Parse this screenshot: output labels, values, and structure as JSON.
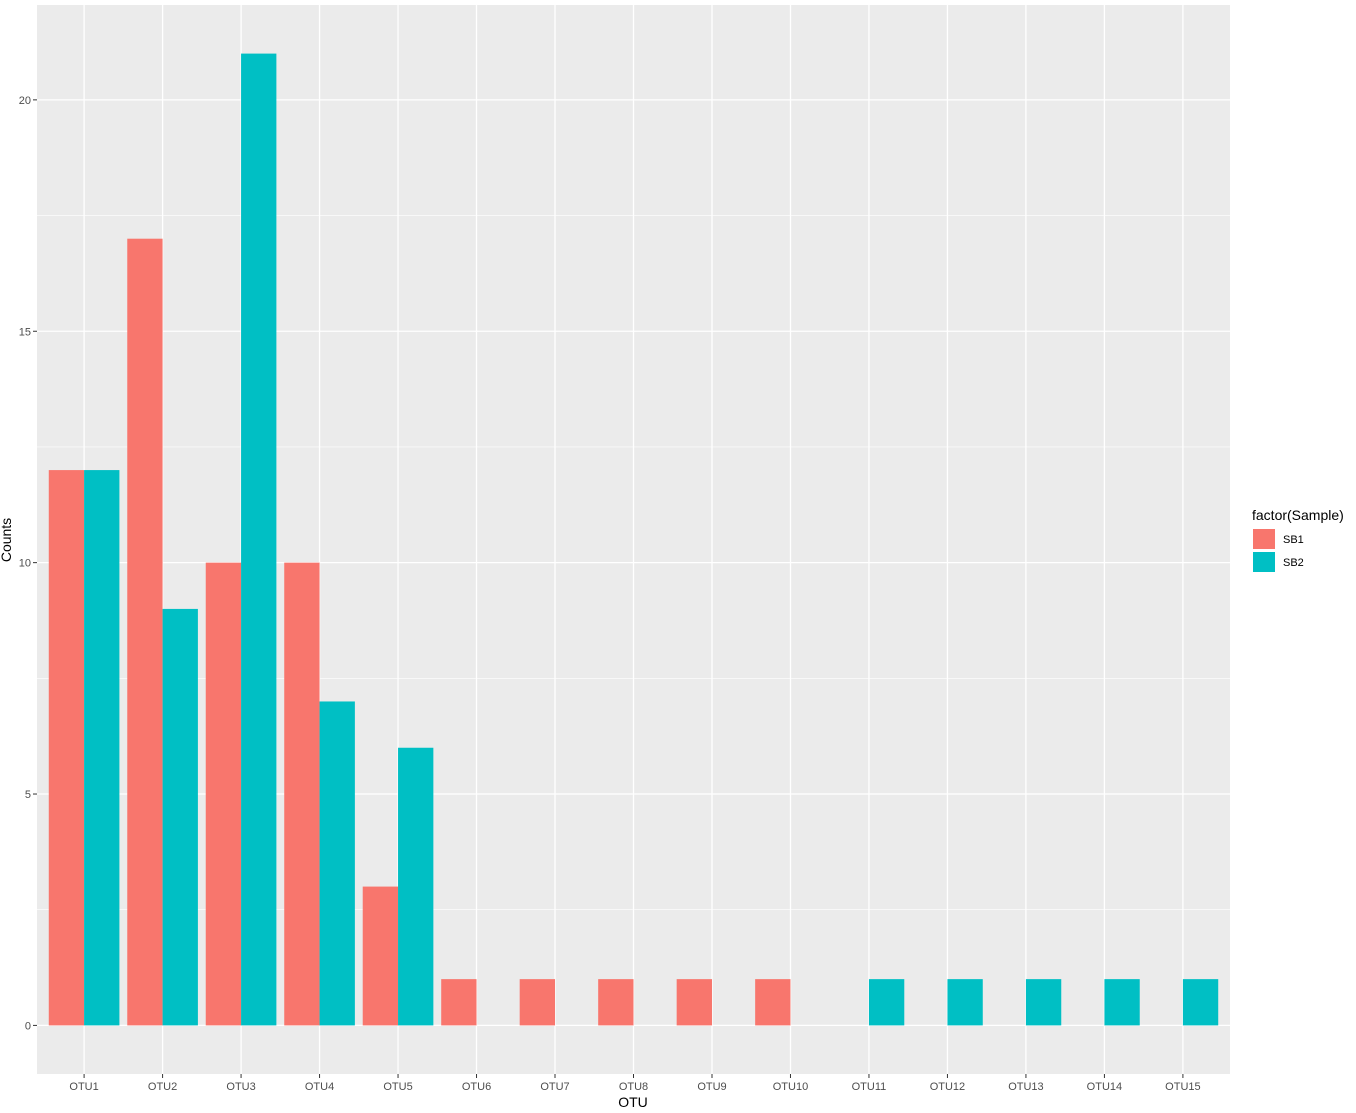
{
  "chart_data": {
    "type": "bar",
    "xlabel": "OTU",
    "ylabel": "Counts",
    "categories": [
      "OTU1",
      "OTU2",
      "OTU3",
      "OTU4",
      "OTU5",
      "OTU6",
      "OTU7",
      "OTU8",
      "OTU9",
      "OTU10",
      "OTU11",
      "OTU12",
      "OTU13",
      "OTU14",
      "OTU15"
    ],
    "series": [
      {
        "name": "SB1",
        "color": "#F8766D",
        "values": [
          12,
          17,
          10,
          10,
          3,
          1,
          1,
          1,
          1,
          1,
          null,
          null,
          null,
          null,
          null
        ]
      },
      {
        "name": "SB2",
        "color": "#00BFC4",
        "values": [
          12,
          9,
          21,
          7,
          6,
          null,
          null,
          null,
          null,
          null,
          1,
          1,
          1,
          1,
          1
        ]
      }
    ],
    "yticks": [
      "0",
      "5",
      "10",
      "15",
      "20"
    ],
    "ylim": [
      -1.05,
      22.05
    ],
    "grid": true,
    "panel_background": "#EBEBEB",
    "grid_color": "#FFFFFF",
    "legend": {
      "title": "factor(Sample)",
      "position": "right",
      "items": [
        "SB1",
        "SB2"
      ]
    }
  }
}
